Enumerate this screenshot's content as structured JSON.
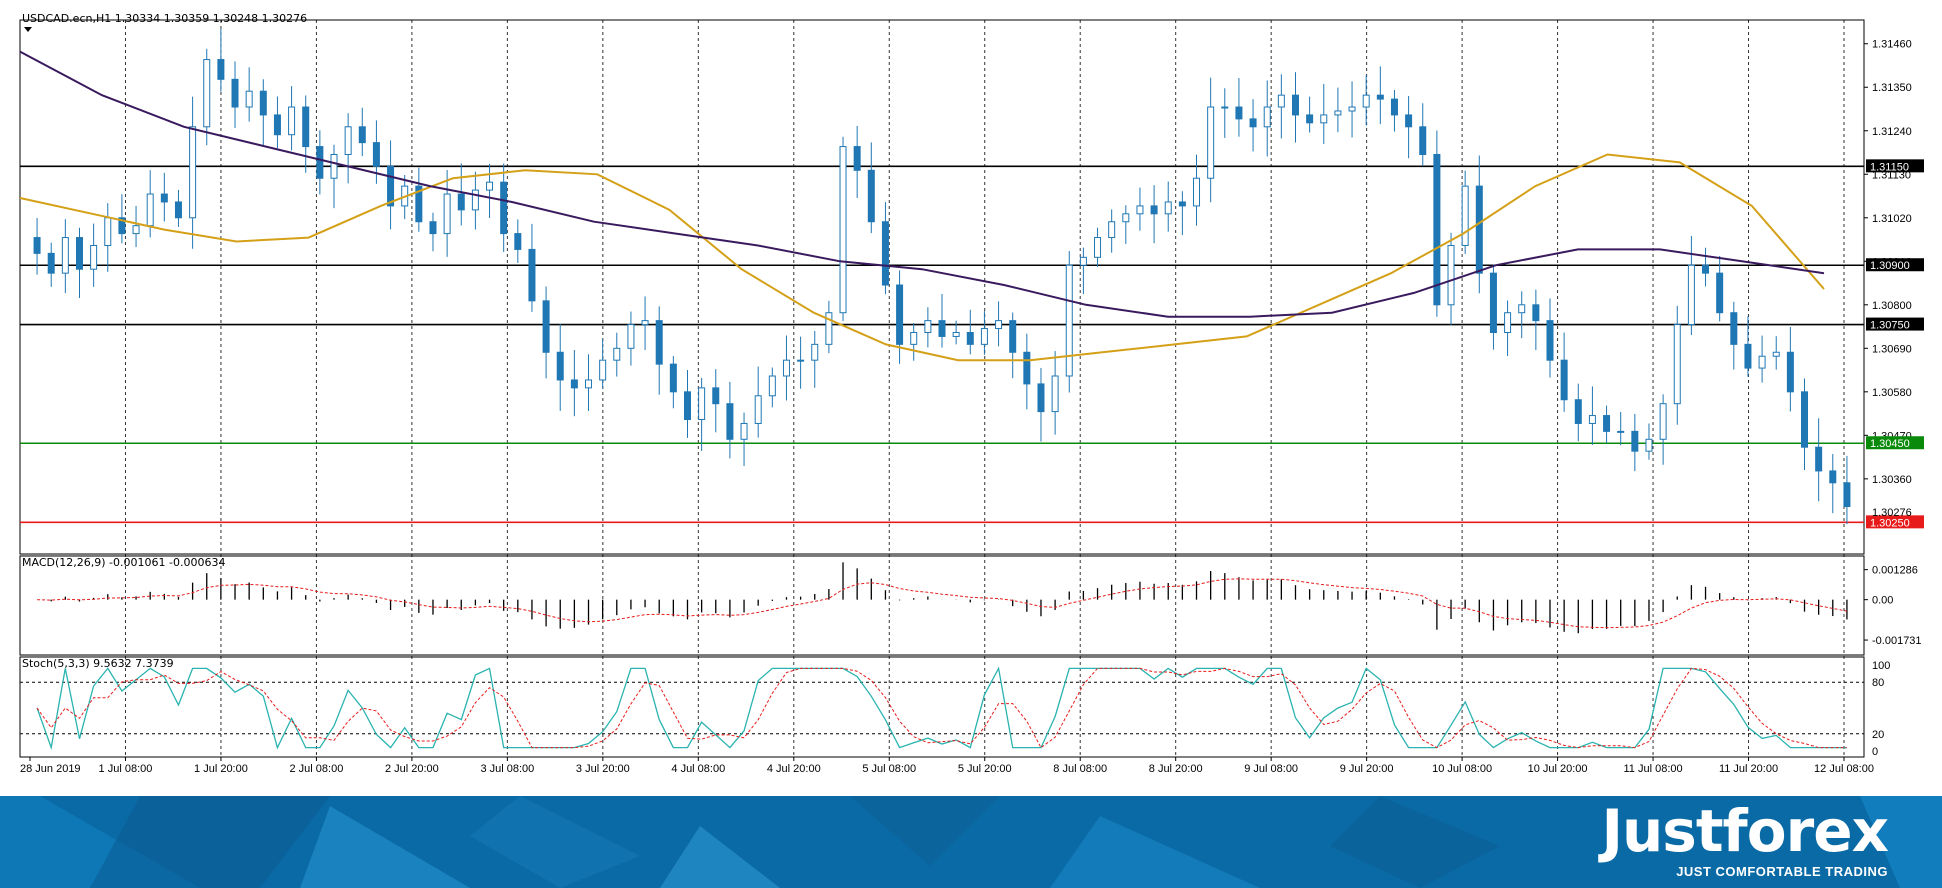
{
  "header": {
    "symbol_line": "USDCAD.ecn,H1  1.30334 1.30359 1.30248 1.30276"
  },
  "chart_data": {
    "type": "candlestick",
    "symbol": "USDCAD.ecn",
    "timeframe": "H1",
    "ohlc": {
      "open": 1.30334,
      "high": 1.30359,
      "low": 1.30248,
      "close": 1.30276
    },
    "price_axis": {
      "ylim": [
        1.3017,
        1.3152
      ],
      "ticks": [
        "1.31460",
        "1.31350",
        "1.31240",
        "1.31130",
        "1.31020",
        "1.30910",
        "1.30800",
        "1.30690",
        "1.30580",
        "1.30470",
        "1.30360"
      ]
    },
    "levels": [
      {
        "value": 1.3115,
        "label": "1.31150",
        "color": "#000000"
      },
      {
        "value": 1.309,
        "label": "1.30900",
        "color": "#000000"
      },
      {
        "value": 1.3075,
        "label": "1.30750",
        "color": "#000000"
      },
      {
        "value": 1.3045,
        "label": "1.30450",
        "color": "#0a8a0a"
      },
      {
        "value": 1.3025,
        "label": "1.30250",
        "color": "#e81b1b"
      }
    ],
    "current_price": {
      "value": 1.30276,
      "label": "1.30276"
    },
    "x_labels": [
      "28 Jun 2019",
      "1 Jul 08:00",
      "1 Jul 20:00",
      "2 Jul 08:00",
      "2 Jul 20:00",
      "3 Jul 08:00",
      "3 Jul 20:00",
      "4 Jul 08:00",
      "4 Jul 20:00",
      "5 Jul 08:00",
      "5 Jul 20:00",
      "8 Jul 08:00",
      "8 Jul 20:00",
      "9 Jul 08:00",
      "9 Jul 20:00",
      "10 Jul 08:00",
      "10 Jul 20:00",
      "11 Jul 08:00",
      "11 Jul 20:00",
      "12 Jul 08:00"
    ],
    "close_path": [
      1.3093,
      1.3088,
      1.3097,
      1.3089,
      1.3095,
      1.3102,
      1.3098,
      1.31,
      1.3108,
      1.3106,
      1.3102,
      1.3125,
      1.3142,
      1.3137,
      1.313,
      1.3134,
      1.3128,
      1.3123,
      1.313,
      1.312,
      1.3112,
      1.3118,
      1.3125,
      1.3121,
      1.3115,
      1.3105,
      1.311,
      1.3101,
      1.3098,
      1.3108,
      1.3104,
      1.3109,
      1.3111,
      1.3098,
      1.3094,
      1.3081,
      1.3068,
      1.3061,
      1.3059,
      1.3061,
      1.3066,
      1.3069,
      1.3075,
      1.3076,
      1.3065,
      1.3058,
      1.3051,
      1.3059,
      1.3055,
      1.3046,
      1.305,
      1.3057,
      1.3062,
      1.3066,
      1.3066,
      1.307,
      1.3078,
      1.312,
      1.3114,
      1.3101,
      1.3085,
      1.307,
      1.3073,
      1.3076,
      1.3072,
      1.3073,
      1.307,
      1.3074,
      1.3076,
      1.3068,
      1.306,
      1.3053,
      1.3062,
      1.309,
      1.3092,
      1.3097,
      1.3101,
      1.3103,
      1.3105,
      1.3103,
      1.3106,
      1.3105,
      1.3112,
      1.313,
      1.313,
      1.3127,
      1.3125,
      1.313,
      1.3133,
      1.3128,
      1.3126,
      1.3128,
      1.3129,
      1.313,
      1.3133,
      1.3132,
      1.3128,
      1.3125,
      1.3118,
      1.308,
      1.3095,
      1.311,
      1.3088,
      1.3073,
      1.3078,
      1.308,
      1.3076,
      1.3066,
      1.3056,
      1.305,
      1.3052,
      1.3048,
      1.3048,
      1.3043,
      1.3046,
      1.3055,
      1.3075,
      1.309,
      1.3088,
      1.3078,
      1.307,
      1.3064,
      1.3067,
      1.3068,
      1.3058,
      1.3044,
      1.3038,
      1.3035,
      1.3029
    ],
    "moving_averages": [
      {
        "color": "#d4a017",
        "values": [
          1.3107,
          1.3103,
          1.3099,
          1.3096,
          1.3097,
          1.3105,
          1.3112,
          1.3114,
          1.3113,
          1.3104,
          1.3089,
          1.3078,
          1.307,
          1.3066,
          1.3066,
          1.3068,
          1.307,
          1.3072,
          1.308,
          1.3088,
          1.3098,
          1.311,
          1.3118,
          1.3116,
          1.3105,
          1.3084
        ]
      },
      {
        "color": "#3a1a5e",
        "values": [
          1.3144,
          1.3133,
          1.3125,
          1.312,
          1.3115,
          1.311,
          1.3106,
          1.3101,
          1.3098,
          1.3095,
          1.3091,
          1.3089,
          1.3085,
          1.308,
          1.3077,
          1.3077,
          1.3078,
          1.3083,
          1.309,
          1.3094,
          1.3094,
          1.3091,
          1.3088
        ]
      }
    ],
    "macd": {
      "label": "MACD(12,26,9) -0.001061 -0.000634",
      "ticks": [
        "0.001286",
        "0.00",
        "-0.001731"
      ],
      "ylim": [
        -0.0022,
        0.0017
      ]
    },
    "stochastic": {
      "label": "Stoch(5,3,3) 9.5632 7.3739",
      "ticks": [
        "100",
        "80",
        "20",
        "0"
      ],
      "levels": [
        20,
        80
      ]
    }
  },
  "footer": {
    "brand": "Justforex",
    "tagline": "JUST COMFORTABLE TRADING"
  }
}
